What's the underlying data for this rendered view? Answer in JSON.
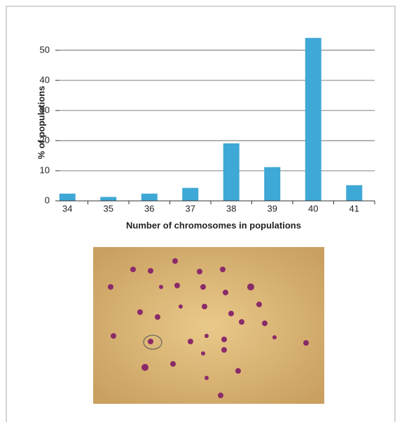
{
  "chart_data": {
    "type": "bar",
    "categories": [
      "34",
      "35",
      "36",
      "37",
      "38",
      "39",
      "40",
      "41"
    ],
    "values": [
      2.4,
      1.3,
      2.4,
      4.3,
      19.1,
      11.2,
      54.1,
      5.2
    ],
    "color": "#3ea8d6",
    "ylim": [
      0,
      56
    ],
    "yticks": [
      0,
      10,
      20,
      30,
      40,
      50
    ],
    "grid": true,
    "x_label": "Number of chromosomes in populations",
    "y_label": "% of populations"
  }
}
